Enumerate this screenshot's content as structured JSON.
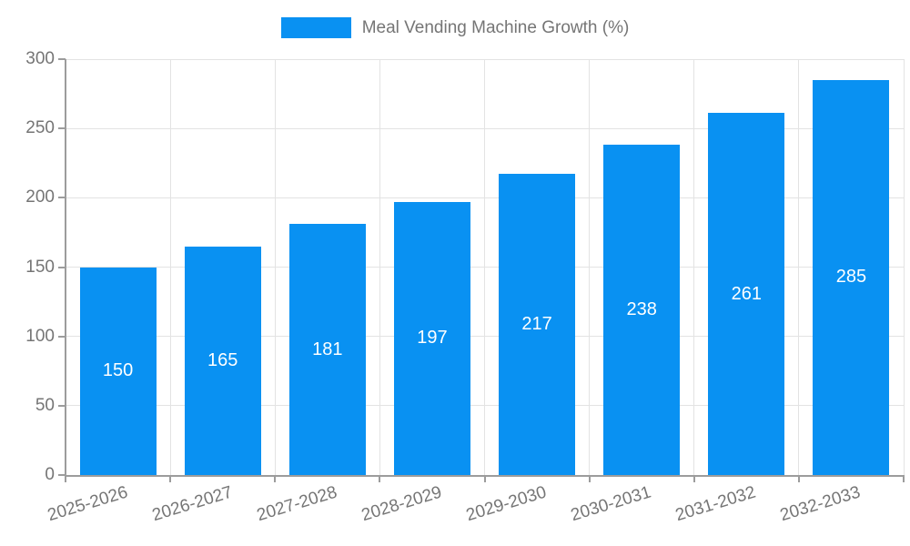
{
  "chart_data": {
    "type": "bar",
    "legend_label": "Meal Vending Machine Growth (%)",
    "legend_position": "top",
    "categories": [
      "2025-2026",
      "2026-2027",
      "2027-2028",
      "2028-2029",
      "2029-2030",
      "2030-2031",
      "2031-2032",
      "2032-2033"
    ],
    "values": [
      150,
      165,
      181,
      197,
      217,
      238,
      261,
      285
    ],
    "value_labels": [
      "150",
      "165",
      "181",
      "197",
      "217",
      "238",
      "261",
      "285"
    ],
    "y_tick_labels": [
      "0",
      "50",
      "100",
      "150",
      "200",
      "250",
      "300"
    ],
    "ylim": [
      0,
      300
    ],
    "ytick_step": 50,
    "grid": true,
    "x_label_rotation_deg": -17,
    "colors": {
      "bar": "#0991F2",
      "value_label": "#FFFFFF",
      "axis_text": "#757575",
      "grid_line": "#E3E3E3",
      "axis_line": "#9C9C9C",
      "background": "#FFFFFF"
    }
  }
}
